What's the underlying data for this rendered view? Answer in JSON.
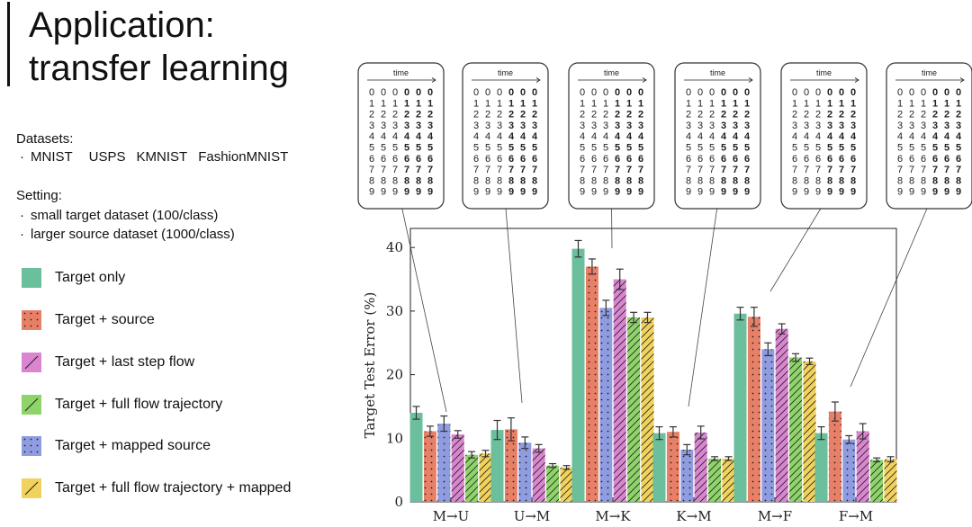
{
  "slide": {
    "title_line1": "Application:",
    "title_line2": "transfer learning",
    "datasets_label": "Datasets:",
    "datasets_items": [
      "MNIST",
      "USPS",
      "KMNIST",
      "FashionMNIST"
    ],
    "setting_label": "Setting:",
    "setting_items": [
      "small target dataset (100/class)",
      "larger source dataset (1000/class)"
    ],
    "inset_time_label": "time"
  },
  "colors": {
    "target_only": "#6cbf9c",
    "target_source": "#e88068",
    "last_step_flow": "#d985d0",
    "full_flow": "#8fd46a",
    "mapped_source": "#8f9ce0",
    "full_flow_mapped": "#f0d25c"
  },
  "chart_data": {
    "type": "bar",
    "categories": [
      "M→U",
      "U→M",
      "M→K",
      "K→M",
      "M→F",
      "F→M"
    ],
    "ylabel": "Target Test Error (%)",
    "xlabel": "",
    "ylim": [
      0,
      43
    ],
    "yticks": [
      0,
      10,
      20,
      30,
      40
    ],
    "grid": false,
    "series": [
      {
        "name": "Target only",
        "color": "#6cbf9c",
        "pattern": "none",
        "values": [
          14.0,
          11.3,
          39.8,
          10.8,
          29.6,
          10.8
        ],
        "errors": [
          1.0,
          1.5,
          1.3,
          1.0,
          1.0,
          1.0
        ]
      },
      {
        "name": "Target + source",
        "color": "#e88068",
        "pattern": "dots",
        "values": [
          11.1,
          11.4,
          37.0,
          11.0,
          29.1,
          14.2
        ],
        "errors": [
          0.8,
          1.8,
          1.2,
          0.8,
          1.5,
          1.5
        ]
      },
      {
        "name": "Target + mapped source",
        "color": "#8f9ce0",
        "pattern": "dots",
        "values": [
          12.3,
          9.3,
          30.5,
          8.2,
          24.0,
          9.8
        ],
        "errors": [
          1.2,
          0.9,
          1.2,
          0.8,
          1.0,
          0.6
        ]
      },
      {
        "name": "Target + last step flow",
        "color": "#d985d0",
        "pattern": "slash",
        "values": [
          10.6,
          8.4,
          35.0,
          10.9,
          27.2,
          11.1
        ],
        "errors": [
          0.6,
          0.6,
          1.6,
          1.0,
          0.8,
          1.2
        ]
      },
      {
        "name": "Target + full flow trajectory",
        "color": "#8fd46a",
        "pattern": "slash",
        "values": [
          7.4,
          5.7,
          29.0,
          6.8,
          22.7,
          6.6
        ],
        "errors": [
          0.5,
          0.3,
          0.8,
          0.3,
          0.6,
          0.3
        ]
      },
      {
        "name": "Target + full flow trajectory + mapped",
        "color": "#f0d25c",
        "pattern": "slash",
        "values": [
          7.6,
          5.4,
          29.0,
          6.8,
          22.1,
          6.7
        ],
        "errors": [
          0.5,
          0.3,
          0.8,
          0.3,
          0.5,
          0.4
        ]
      }
    ]
  },
  "legend": [
    {
      "label": "Target only",
      "color": "#6cbf9c",
      "pattern": "none"
    },
    {
      "label": "Target + source",
      "color": "#e88068",
      "pattern": "dots"
    },
    {
      "label": "Target + last step flow",
      "color": "#d985d0",
      "pattern": "slash"
    },
    {
      "label": "Target + full flow trajectory",
      "color": "#8fd46a",
      "pattern": "slash"
    },
    {
      "label": "Target + mapped source",
      "color": "#8f9ce0",
      "pattern": "dots"
    },
    {
      "label": "Target + full flow trajectory + mapped",
      "color": "#f0d25c",
      "pattern": "slash"
    }
  ]
}
